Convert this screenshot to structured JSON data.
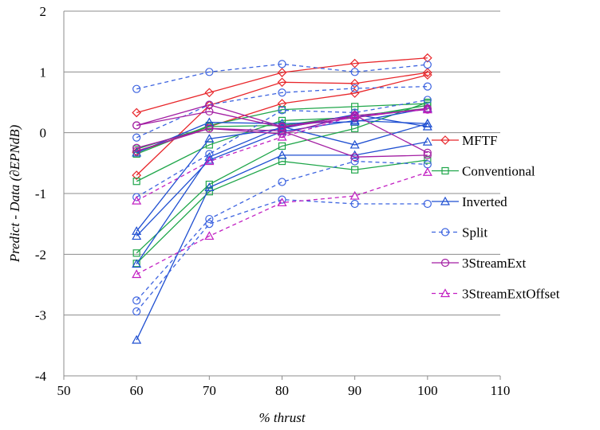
{
  "chart_data": {
    "type": "line",
    "xlabel": "% thrust",
    "ylabel": "Predict - Data (∂EPNdB)",
    "xlim": [
      50,
      110
    ],
    "ylim": [
      -4,
      2
    ],
    "xticks": [
      50,
      60,
      70,
      80,
      90,
      100,
      110
    ],
    "yticks": [
      -4,
      -3,
      -2,
      -1,
      0,
      1,
      2
    ],
    "grid": "horizontal",
    "legend_position": "right",
    "x": [
      60,
      70,
      80,
      90,
      100
    ],
    "series": [
      {
        "name": "MFTF",
        "color": "#e8262a",
        "marker": "diamond",
        "dash": "solid",
        "lines": [
          [
            0.33,
            0.66,
            0.99,
            1.14,
            1.23
          ],
          [
            -0.7,
            0.45,
            0.83,
            0.81,
            0.99
          ],
          [
            -0.32,
            0.1,
            0.48,
            0.65,
            0.95
          ]
        ]
      },
      {
        "name": "Conventional",
        "color": "#1fa64a",
        "marker": "square",
        "dash": "solid",
        "lines": [
          [
            -0.35,
            0.12,
            0.38,
            0.43,
            0.48
          ],
          [
            -0.8,
            -0.2,
            0.2,
            0.25,
            0.45
          ],
          [
            -1.98,
            -0.85,
            -0.22,
            0.07,
            0.5
          ],
          [
            -2.15,
            -0.97,
            -0.47,
            -0.61,
            -0.45
          ],
          [
            -0.27,
            0.1,
            0.12,
            0.28,
            0.4
          ]
        ]
      },
      {
        "name": "Inverted",
        "color": "#1f4fd1",
        "marker": "triangle",
        "dash": "solid",
        "lines": [
          [
            -3.41,
            -0.9,
            -0.37,
            -0.37,
            -0.15
          ],
          [
            -1.7,
            -0.45,
            0.02,
            0.2,
            0.15
          ],
          [
            -1.62,
            -0.1,
            0.07,
            0.3,
            0.1
          ],
          [
            -2.16,
            -0.4,
            0.1,
            -0.2,
            0.15
          ],
          [
            -0.33,
            0.17,
            0.15,
            0.18,
            0.4
          ]
        ]
      },
      {
        "name": "Split",
        "color": "#3c63e0",
        "marker": "circle",
        "dash": "dashed",
        "lines": [
          [
            0.72,
            1.0,
            1.13,
            1.0,
            1.12
          ],
          [
            -0.08,
            0.46,
            0.66,
            0.73,
            0.76
          ],
          [
            -1.06,
            -0.35,
            0.37,
            0.33,
            0.54
          ],
          [
            -2.76,
            -1.42,
            -0.81,
            -0.47,
            -0.52
          ],
          [
            -2.94,
            -1.5,
            -1.1,
            -1.17,
            -1.17
          ]
        ]
      },
      {
        "name": "3StreamExt",
        "color": "#a31fa3",
        "marker": "circle",
        "dash": "solid",
        "lines": [
          [
            0.12,
            0.35,
            0.09,
            0.25,
            0.4
          ],
          [
            -0.25,
            0.07,
            -0.02,
            0.29,
            -0.33
          ],
          [
            -0.3,
            0.07,
            0.03,
            -0.4,
            -0.37
          ],
          [
            0.12,
            0.46,
            0.1,
            0.28,
            0.38
          ]
        ]
      },
      {
        "name": "3StreamExtOffset",
        "color": "#c21fc2",
        "marker": "triangle",
        "dash": "dashed",
        "lines": [
          [
            -2.33,
            -1.7,
            -1.15,
            -1.04,
            -0.65
          ],
          [
            -1.12,
            -0.47,
            -0.07,
            0.28,
            0.38
          ]
        ]
      }
    ]
  }
}
